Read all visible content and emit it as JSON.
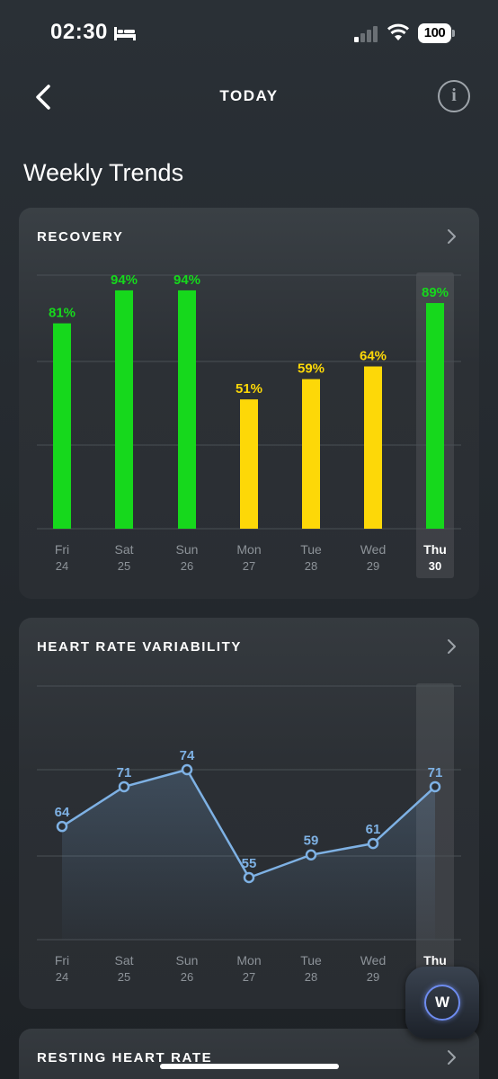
{
  "status_bar": {
    "time": "02:30",
    "battery": "100"
  },
  "nav": {
    "title": "TODAY",
    "info_glyph": "i"
  },
  "page": {
    "heading": "Weekly Trends"
  },
  "fab": {
    "glyph": "W"
  },
  "colors": {
    "green": "#16d81c",
    "yellow": "#fdd808",
    "blue": "#7eb1e4"
  },
  "days": [
    {
      "day": "Fri",
      "date": "24"
    },
    {
      "day": "Sat",
      "date": "25"
    },
    {
      "day": "Sun",
      "date": "26"
    },
    {
      "day": "Mon",
      "date": "27"
    },
    {
      "day": "Tue",
      "date": "28"
    },
    {
      "day": "Wed",
      "date": "29"
    },
    {
      "day": "Thu",
      "date": "30",
      "selected": true
    }
  ],
  "cards": {
    "recovery_title": "RECOVERY",
    "hrv_title": "HEART RATE VARIABILITY",
    "rhr_title": "RESTING HEART RATE"
  },
  "chart_data": [
    {
      "type": "bar",
      "title": "RECOVERY",
      "categories": [
        "Fri 24",
        "Sat 25",
        "Sun 26",
        "Mon 27",
        "Tue 28",
        "Wed 29",
        "Thu 30"
      ],
      "values": [
        81,
        94,
        94,
        51,
        59,
        64,
        89
      ],
      "labels": [
        "81%",
        "94%",
        "94%",
        "51%",
        "59%",
        "64%",
        "89%"
      ],
      "colors": [
        "green",
        "green",
        "green",
        "yellow",
        "yellow",
        "yellow",
        "green"
      ],
      "ylim": [
        0,
        100
      ],
      "grid": true
    },
    {
      "type": "line",
      "title": "HEART RATE VARIABILITY",
      "categories": [
        "Fri 24",
        "Sat 25",
        "Sun 26",
        "Mon 27",
        "Tue 28",
        "Wed 29",
        "Thu 30"
      ],
      "values": [
        64,
        71,
        74,
        55,
        59,
        61,
        71
      ],
      "labels": [
        "64",
        "71",
        "74",
        "55",
        "59",
        "61",
        "71"
      ],
      "grid": true
    }
  ]
}
